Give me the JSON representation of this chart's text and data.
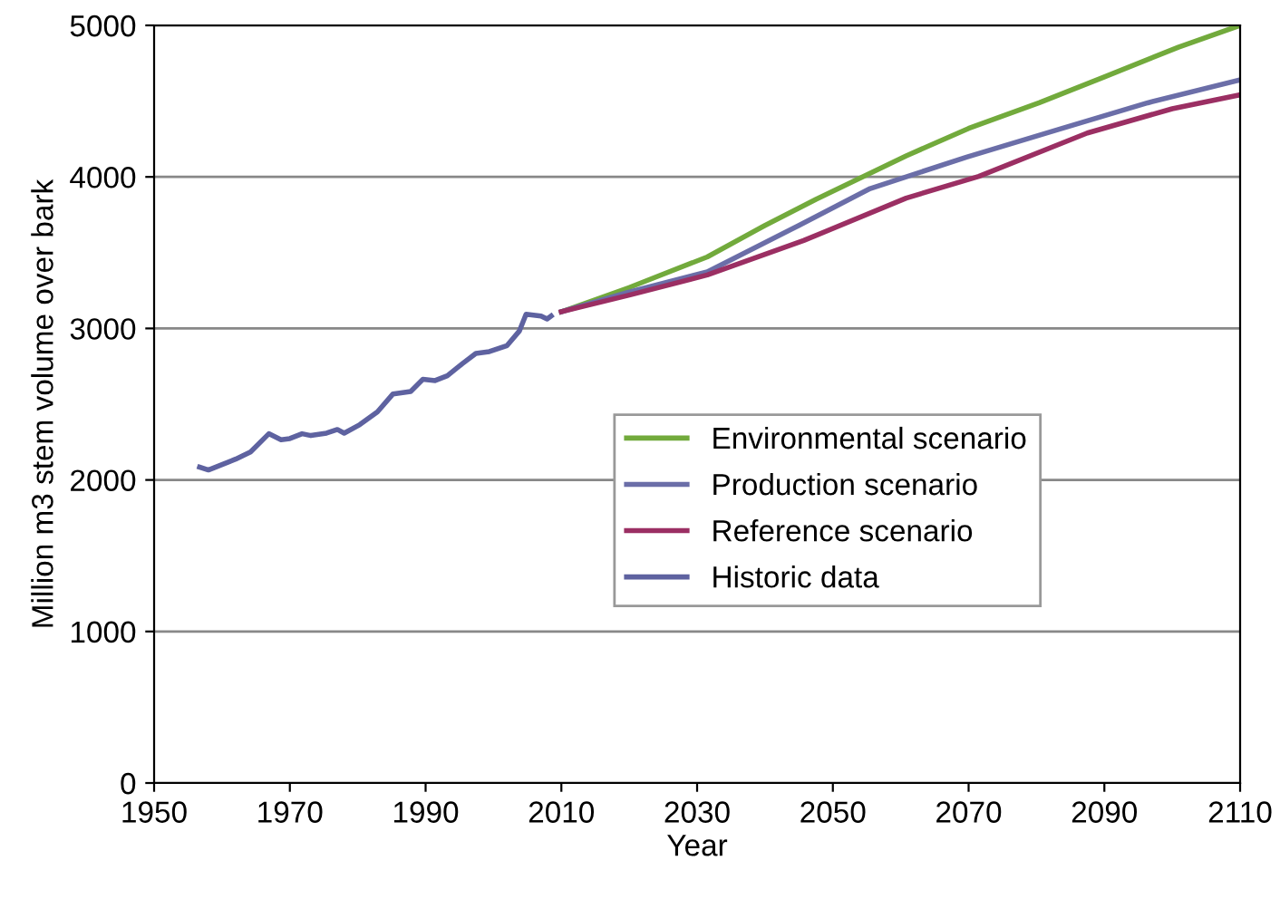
{
  "chart_data": {
    "type": "line",
    "xlabel": "Year",
    "ylabel": "Million m3 stem volume over bark",
    "xlim": [
      1950,
      2110
    ],
    "xticks": [
      1950,
      1970,
      1990,
      2010,
      2030,
      2050,
      2070,
      2090,
      2110
    ],
    "ylim": [
      0,
      5000
    ],
    "yticks": [
      0,
      1000,
      2000,
      3000,
      4000,
      5000
    ],
    "grid": "y",
    "legend": "right",
    "marker": "none",
    "line_style": "solid",
    "series": [
      {
        "name": "Environmental scenario",
        "color": "#72aa3c",
        "x": [
          2010,
          2020,
          2031.5,
          2040,
          2047.5,
          2060.8,
          2070,
          2080.4,
          2090,
          2100.9,
          2110
        ],
        "values": [
          3110,
          3270,
          3472,
          3680,
          3852,
          4139,
          4320,
          4489,
          4660,
          4856,
          5000
        ]
      },
      {
        "name": "Production scenario",
        "color": "#6b6ea8",
        "x": [
          2010,
          2020,
          2031.5,
          2045,
          2055.5,
          2069.7,
          2083,
          2096.4,
          2110
        ],
        "values": [
          3110,
          3240,
          3373,
          3680,
          3923,
          4131,
          4310,
          4489,
          4641
        ]
      },
      {
        "name": "Reference scenario",
        "color": "#9b2f63",
        "x": [
          2010,
          2020,
          2031.5,
          2045.7,
          2060.8,
          2071.5,
          2087.5,
          2100,
          2110
        ],
        "values": [
          3110,
          3220,
          3353,
          3580,
          3860,
          4003,
          4290,
          4450,
          4542
        ]
      },
      {
        "name": "Historic data",
        "color": "#5e62a0",
        "x": [
          1956.7,
          1958,
          1962,
          1964.2,
          1966.9,
          1968.7,
          1970,
          1971.8,
          1973.1,
          1975.4,
          1977,
          1978,
          1980.3,
          1982.9,
          1985.2,
          1987.8,
          1989.6,
          1991.4,
          1993.2,
          1995.4,
          1997.4,
          1999.4,
          2002,
          2003.8,
          2004.8,
          2007,
          2007.9,
          2008.5
        ],
        "values": [
          2085,
          2066,
          2137,
          2185,
          2305,
          2265,
          2273,
          2305,
          2293,
          2309,
          2333,
          2309,
          2365,
          2449,
          2568,
          2584,
          2664,
          2656,
          2688,
          2767,
          2835,
          2847,
          2887,
          2982,
          3094,
          3082,
          3062,
          3082
        ]
      }
    ]
  }
}
